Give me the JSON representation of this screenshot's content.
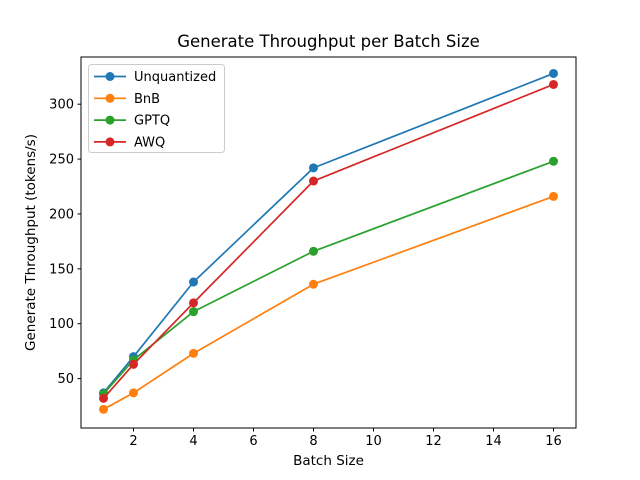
{
  "chart_data": {
    "type": "line",
    "title": "Generate Throughput per Batch Size",
    "xlabel": "Batch Size",
    "ylabel": "Generate Throughput (tokens/s)",
    "x": [
      1,
      2,
      4,
      8,
      16
    ],
    "series": [
      {
        "name": "Unquantized",
        "color": "#1f77b4",
        "values": [
          37,
          70,
          138,
          242,
          328
        ]
      },
      {
        "name": "BnB",
        "color": "#ff7f0e",
        "values": [
          22,
          37,
          73,
          136,
          216
        ]
      },
      {
        "name": "GPTQ",
        "color": "#2ca02c",
        "values": [
          36,
          67,
          111,
          166,
          248
        ]
      },
      {
        "name": "AWQ",
        "color": "#d62728",
        "values": [
          32,
          63,
          119,
          230,
          318
        ]
      }
    ],
    "xticks": [
      2,
      4,
      6,
      8,
      10,
      12,
      14,
      16
    ],
    "yticks": [
      50,
      100,
      150,
      200,
      250,
      300
    ],
    "xlim": [
      0.25,
      16.75
    ],
    "ylim": [
      5,
      343
    ],
    "grid": false,
    "legend_position": "upper left",
    "marker": "o",
    "line_width": 1.7,
    "marker_radius": 4.5,
    "background": "#ffffff",
    "spine_color": "#000000",
    "legend_border_color": "#cccccc"
  }
}
